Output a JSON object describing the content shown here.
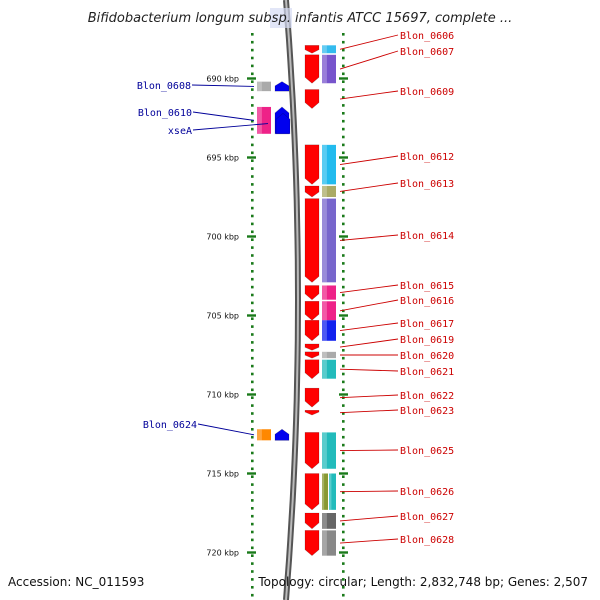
{
  "title": "Bifidobacterium longum subsp. infantis ATCC 15697, complete ...",
  "footer": {
    "accession": "Accession: NC_011593",
    "summary": "Topology: circular; Length: 2,832,748 bp; Genes: 2,507"
  },
  "colors": {
    "backbone": "#888888",
    "cds": "#ff0000",
    "right_label": "#cc0000",
    "left_label": "#000099",
    "ticks": "#1a7a1a"
  },
  "ticks": [
    {
      "label": "690 kbp",
      "kbp": 690
    },
    {
      "label": "695 kbp",
      "kbp": 695
    },
    {
      "label": "700 kbp",
      "kbp": 700
    },
    {
      "label": "705 kbp",
      "kbp": 705
    },
    {
      "label": "710 kbp",
      "kbp": 710
    },
    {
      "label": "715 kbp",
      "kbp": 715
    },
    {
      "label": "720 kbp",
      "kbp": 720
    }
  ],
  "right_genes": [
    {
      "name": "Blon_0606",
      "start": 687.9,
      "end": 688.4,
      "fcolor": "#33bbee"
    },
    {
      "name": "Blon_0607",
      "start": 688.5,
      "end": 690.3,
      "fcolor": "#7755cc"
    },
    {
      "name": "Blon_0609",
      "start": 690.7,
      "end": 691.9,
      "fcolor": null
    },
    {
      "name": "Blon_0612",
      "start": 694.2,
      "end": 696.7,
      "fcolor": "#22bbee"
    },
    {
      "name": "Blon_0613",
      "start": 696.8,
      "end": 697.5,
      "fcolor": "#aaaa66"
    },
    {
      "name": "Blon_0614",
      "start": 697.6,
      "end": 702.9,
      "fcolor": "#7766cc"
    },
    {
      "name": "Blon_0615",
      "start": 703.1,
      "end": 704.0,
      "fcolor": "#ee2288"
    },
    {
      "name": "Blon_0616",
      "start": 704.1,
      "end": 705.3,
      "fcolor": "#ee2288"
    },
    {
      "name": "Blon_0617",
      "start": 705.3,
      "end": 706.6,
      "fcolor": "#1122ee"
    },
    {
      "name": "Blon_0619",
      "start": 706.8,
      "end": 707.2,
      "fcolor": null
    },
    {
      "name": "Blon_0620",
      "start": 707.3,
      "end": 707.7,
      "fcolor": "#aaaaaa"
    },
    {
      "name": "Blon_0621",
      "start": 707.8,
      "end": 709.0,
      "fcolor": "#22bbbb"
    },
    {
      "name": "Blon_0622",
      "start": 709.6,
      "end": 710.8,
      "fcolor": null
    },
    {
      "name": "Blon_0623",
      "start": 711.0,
      "end": 711.3,
      "fcolor": null
    },
    {
      "name": "Blon_0625",
      "start": 712.4,
      "end": 714.7,
      "fcolor": "#22bbbb"
    },
    {
      "name": "Blon_0626",
      "start": 715.0,
      "end": 717.3,
      "fcolor": "#889933"
    },
    {
      "name": "Blon_0627",
      "start": 717.5,
      "end": 718.5,
      "fcolor": "#666666"
    },
    {
      "name": "Blon_0628",
      "start": 718.6,
      "end": 720.2,
      "fcolor": "#888888"
    }
  ],
  "left_genes": [
    {
      "name": "Blon_0608",
      "start": 690.2,
      "end": 690.8,
      "fcolor": "#aaaaaa",
      "color": "#0000ee"
    },
    {
      "name": "Blon_0610",
      "start": 691.8,
      "end": 693.5,
      "fcolor": "#ee2288",
      "color": "#0000ee"
    },
    {
      "name": "xseA",
      "start": 692.2,
      "end": 693.5,
      "fcolor": null,
      "color": "#0000ee"
    },
    {
      "name": "Blon_0624",
      "start": 712.2,
      "end": 712.9,
      "fcolor": "#ff8800",
      "color": "#0000ee"
    }
  ]
}
